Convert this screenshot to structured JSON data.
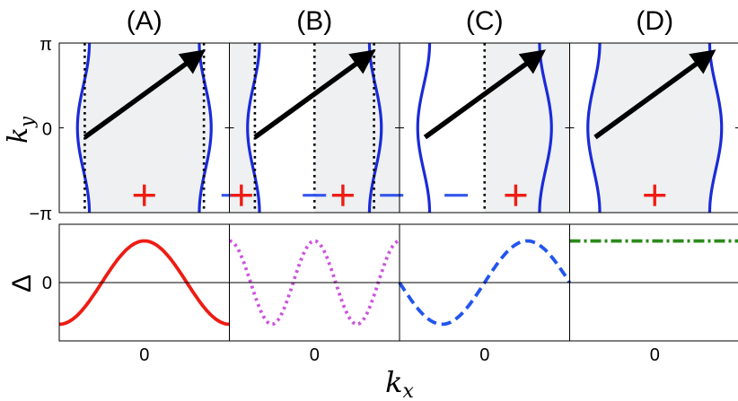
{
  "chart_data": {
    "type": "line",
    "panel_labels": [
      "(A)",
      "(B)",
      "(C)",
      "(D)"
    ],
    "top_plots": {
      "ylabel": "k_y",
      "ylabel_main": "k",
      "ylabel_sub": "y",
      "ytick_labels": [
        "π",
        "0",
        "−π"
      ],
      "ytick_values": [
        3.1416,
        0,
        -3.1416
      ],
      "ylim": [
        -3.1416,
        3.1416
      ],
      "xlim": [
        -3.1416,
        3.1416
      ],
      "fermi_surface_kx": [
        -2.25,
        2.25
      ],
      "fermi_surface_amplitude": 0.22,
      "nesting_vector": {
        "from": [
          -2.2,
          -0.35
        ],
        "to": [
          1.85,
          2.6
        ]
      },
      "panels": [
        {
          "label": "(A)",
          "nodes_kx": [
            -2.2,
            2.2
          ],
          "signs": [
            "+"
          ],
          "sign_kx": [
            0.0
          ],
          "sign_ky": -2.5,
          "minus_positions": []
        },
        {
          "label": "(B)",
          "nodes_kx": [
            -2.2,
            0.0,
            2.2
          ],
          "signs": [
            "+",
            "+"
          ],
          "sign_kx": [
            -2.7,
            1.05
          ],
          "sign_ky": -2.5,
          "minus_positions": [
            -3.0,
            0.0,
            2.85
          ]
        },
        {
          "label": "(C)",
          "nodes_kx": [
            0.0
          ],
          "signs": [
            "+"
          ],
          "sign_kx": [
            1.15
          ],
          "sign_ky": -2.5,
          "minus_positions": [
            -1.05
          ]
        },
        {
          "label": "(D)",
          "nodes_kx": [],
          "signs": [
            "+"
          ],
          "sign_kx": [
            0.0
          ],
          "sign_ky": -2.5,
          "minus_positions": []
        }
      ]
    },
    "bottom_plots": {
      "ylabel": "Δ",
      "ytick_labels": [
        "0"
      ],
      "xlabel": "k_x",
      "xlabel_main": "k",
      "xlabel_sub": "x",
      "xtick_labels": [
        "0",
        "0",
        "0",
        "0"
      ],
      "ylim": [
        -1.4,
        1.4
      ],
      "series": [
        {
          "name": "(A) cos(kx)",
          "panel": 0,
          "function": "cos(kx)",
          "color": "#ee1c14",
          "style": "solid"
        },
        {
          "name": "(B) cos(2kx)",
          "panel": 1,
          "function": "cos(2kx)",
          "color": "#cc55dd",
          "style": "dotted"
        },
        {
          "name": "(C) sin(kx)",
          "panel": 2,
          "function": "sin(kx)",
          "color": "#2255ee",
          "style": "dashed"
        },
        {
          "name": "(D) constant",
          "panel": 3,
          "function": "1",
          "color": "#2a8a1a",
          "style": "dashdot"
        }
      ]
    },
    "colors": {
      "fermi_surface": "#1a2bd8",
      "arrow": "#000000",
      "plus": "#ee1c14",
      "minus": "#3355ee",
      "shade": "#eef0f1"
    }
  }
}
